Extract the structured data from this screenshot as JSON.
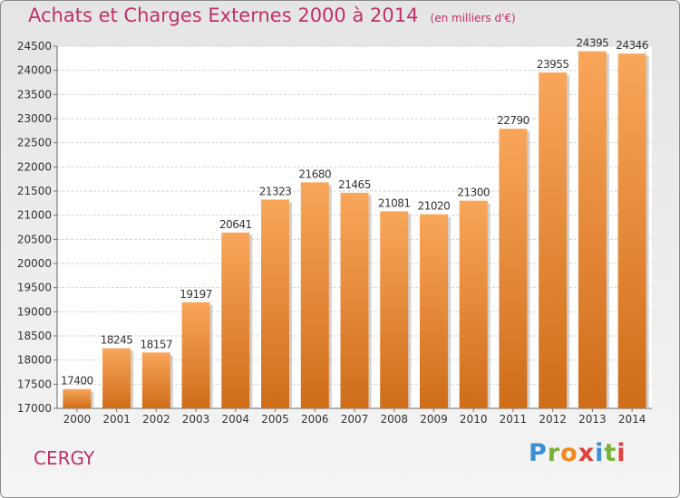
{
  "title": {
    "main": "Achats et Charges Externes 2000 à 2014",
    "sub": "(en milliers d'€)"
  },
  "commune": "CERGY",
  "brand": {
    "text": "Proxiti",
    "letters": [
      {
        "ch": "P",
        "color": "#3a8fd4"
      },
      {
        "ch": "r",
        "color": "#7bb13a"
      },
      {
        "ch": "o",
        "color": "#f08a1c"
      },
      {
        "ch": "x",
        "color": "#e0403a"
      },
      {
        "ch": "i",
        "color": "#3a8fd4"
      },
      {
        "ch": "t",
        "color": "#7bb13a"
      },
      {
        "ch": "i",
        "color": "#e0403a"
      }
    ]
  },
  "colors": {
    "bar_light": "#f9a65b",
    "bar_dark": "#cf6d18",
    "accent": "#c0306a"
  },
  "chart_data": {
    "type": "bar",
    "title": "Achats et Charges Externes 2000 à 2014",
    "subtitle": "(en milliers d'€)",
    "categories": [
      "2000",
      "2001",
      "2002",
      "2003",
      "2004",
      "2005",
      "2006",
      "2007",
      "2008",
      "2009",
      "2010",
      "2011",
      "2012",
      "2013",
      "2014"
    ],
    "values": [
      17400,
      18245,
      18157,
      19197,
      20641,
      21323,
      21680,
      21465,
      21081,
      21020,
      21300,
      22790,
      23955,
      24395,
      24346
    ],
    "ylim": [
      17000,
      24500
    ],
    "yticks": [
      17000,
      17500,
      18000,
      18500,
      19000,
      19500,
      20000,
      20500,
      21000,
      21500,
      22000,
      22500,
      23000,
      23500,
      24000,
      24500
    ],
    "grid": true,
    "legend": "none"
  }
}
